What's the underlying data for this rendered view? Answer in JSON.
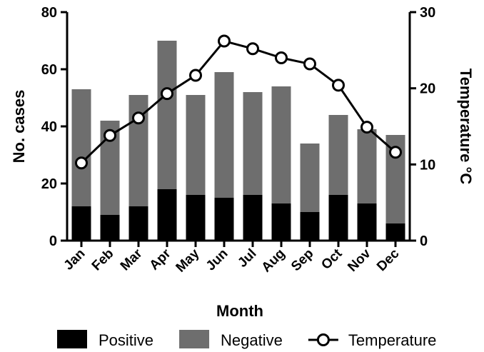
{
  "chart_data": {
    "type": "bar",
    "stacked": true,
    "categories": [
      "Jan",
      "Feb",
      "Mar",
      "Apr",
      "May",
      "Jun",
      "Jul",
      "Aug",
      "Sep",
      "Oct",
      "Nov",
      "Dec"
    ],
    "series": [
      {
        "name": "Positive",
        "kind": "bar",
        "axis": "left",
        "color": "#000000",
        "values": [
          12,
          9,
          12,
          18,
          16,
          15,
          16,
          13,
          10,
          16,
          13,
          6
        ]
      },
      {
        "name": "Negative",
        "kind": "bar",
        "axis": "left",
        "color": "#6e6e6e",
        "values": [
          41,
          33,
          39,
          52,
          35,
          44,
          36,
          41,
          24,
          28,
          26,
          31
        ]
      },
      {
        "name": "Temperature",
        "kind": "line",
        "axis": "right",
        "color": "#000000",
        "marker": "open-circle",
        "values": [
          10.2,
          13.8,
          16.1,
          19.3,
          21.7,
          26.2,
          25.2,
          24.0,
          23.2,
          20.4,
          14.9,
          11.6
        ]
      }
    ],
    "xlabel": "Month",
    "ylabel": "No. cases",
    "y2label": "Temperature °C",
    "ylim": [
      0,
      80
    ],
    "y2lim": [
      0,
      30
    ],
    "yticks": [
      0,
      20,
      40,
      60,
      80
    ],
    "y2ticks": [
      0,
      10,
      20,
      30
    ],
    "grid": false,
    "legend_position": "bottom"
  }
}
